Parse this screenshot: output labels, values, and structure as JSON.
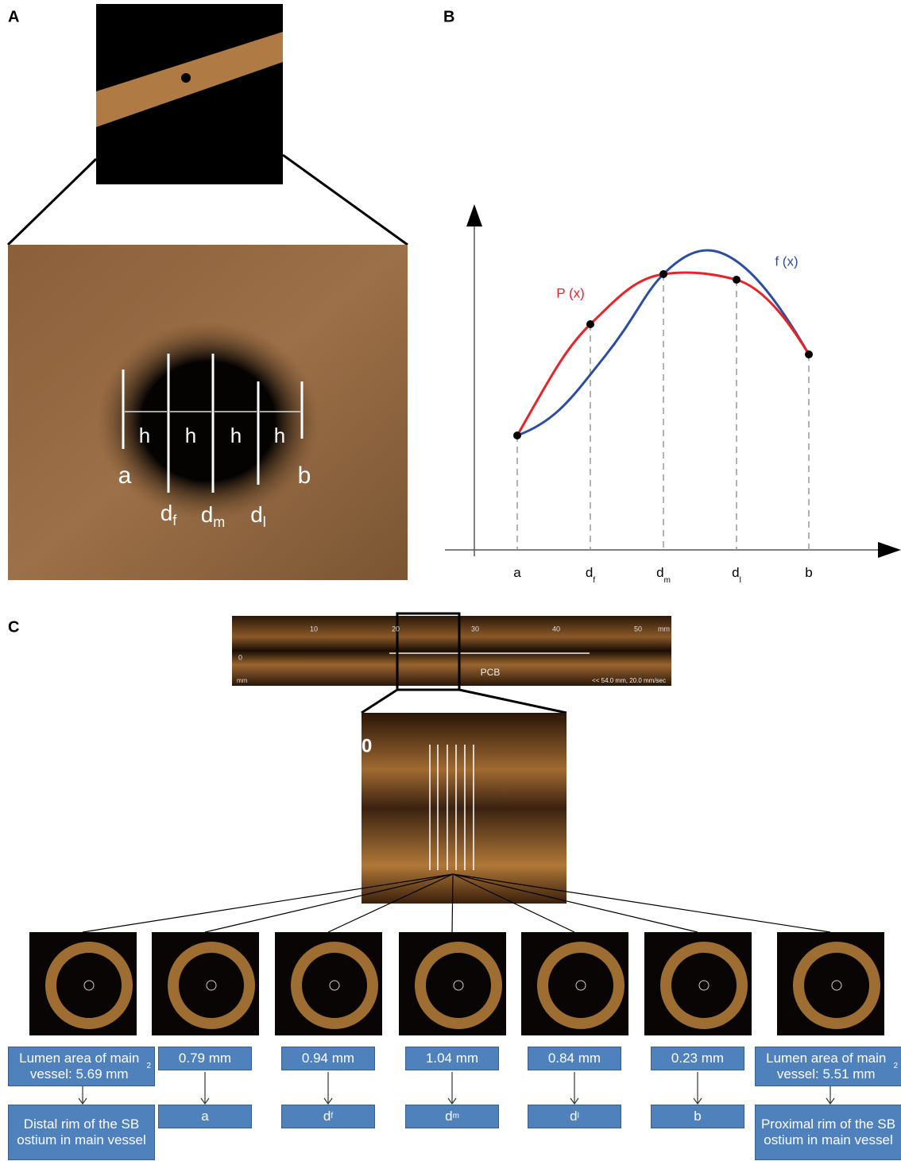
{
  "panel_labels": [
    "A",
    "B",
    "C"
  ],
  "panel_a": {
    "h": [
      "h",
      "h",
      "h",
      "h"
    ],
    "ends": [
      "a",
      "b"
    ],
    "points": [
      {
        "base": "d",
        "sub": "f"
      },
      {
        "base": "d",
        "sub": "m"
      },
      {
        "base": "d",
        "sub": "l"
      }
    ]
  },
  "panel_b": {
    "curves": [
      "P (x)",
      "f (x)"
    ],
    "x_labels": [
      {
        "base": "a"
      },
      {
        "base": "d",
        "sub": "f"
      },
      {
        "base": "d",
        "sub": "m"
      },
      {
        "base": "d",
        "sub": "l"
      },
      {
        "base": "b"
      }
    ]
  },
  "panel_c": {
    "scan": {
      "ticks": [
        "10",
        "20",
        "30",
        "40",
        "50"
      ],
      "unit": "mm",
      "zero": "0",
      "left_unit": "mm",
      "device": "PCB",
      "info": "<< 54.0 mm, 20.0 mm/sec"
    },
    "zoom_label": "0",
    "measurements": [
      {
        "text": "Lumen area of main vessel: 5.69 mm",
        "sup": "2"
      },
      {
        "text": "0.79 mm"
      },
      {
        "text": "0.94 mm"
      },
      {
        "text": "1.04 mm"
      },
      {
        "text": "0.84 mm"
      },
      {
        "text": "0.23 mm"
      },
      {
        "text": "Lumen area of main vessel: 5.51 mm",
        "sup": "2"
      }
    ],
    "positions": [
      {
        "text": "Distal rim of the SB ostium in main vessel"
      },
      {
        "base": "a"
      },
      {
        "base": "d",
        "sub": "f"
      },
      {
        "base": "d",
        "sub": "m"
      },
      {
        "base": "d",
        "sub": "l"
      },
      {
        "base": "b"
      },
      {
        "text": "Proximal rim of the SB ostium in main vessel"
      }
    ]
  }
}
